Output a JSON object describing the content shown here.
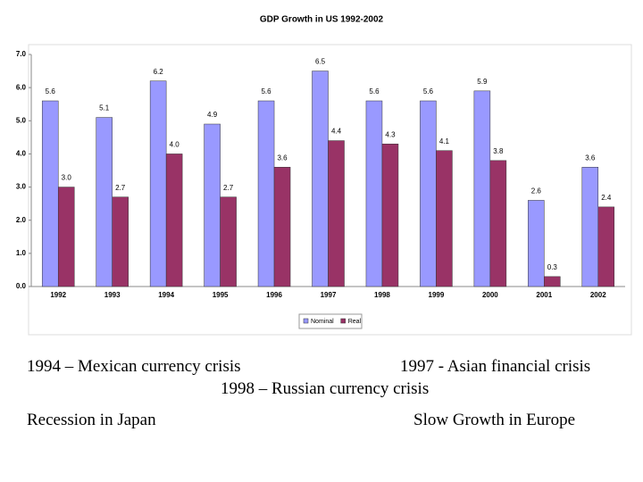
{
  "chart_data": {
    "type": "bar",
    "title": "GDP Growth in US 1992-2002",
    "categories": [
      "1992",
      "1993",
      "1994",
      "1995",
      "1996",
      "1997",
      "1998",
      "1999",
      "2000",
      "2001",
      "2002"
    ],
    "series": [
      {
        "name": "Nominal",
        "color": "#9999ff",
        "values": [
          5.6,
          5.1,
          6.2,
          4.9,
          5.6,
          6.5,
          5.6,
          5.6,
          5.9,
          2.6,
          3.6
        ],
        "value_labels": [
          "5.6",
          "5.1",
          "6.2",
          "4.9",
          "5.6",
          "6.5",
          "5.6",
          "5.6",
          "5.9",
          "2.6",
          "3.6"
        ]
      },
      {
        "name": "Real",
        "color": "#993366",
        "values": [
          3.0,
          2.7,
          4.0,
          2.7,
          3.6,
          4.4,
          4.3,
          4.1,
          3.8,
          0.3,
          2.4
        ],
        "value_labels": [
          "3.0",
          "2.7",
          "4.0",
          "2.7",
          "3.6",
          "4.4",
          "4.3",
          "4.1",
          "3.8",
          "0.3",
          "2.4"
        ]
      }
    ],
    "ylim": [
      0,
      7
    ],
    "yticks": [
      {
        "value": 0,
        "label": "0.0"
      },
      {
        "value": 1,
        "label": "1.0"
      },
      {
        "value": 2,
        "label": "2.0"
      },
      {
        "value": 3,
        "label": "3.0"
      },
      {
        "value": 4,
        "label": "4.0"
      },
      {
        "value": 5,
        "label": "5.0"
      },
      {
        "value": 6,
        "label": "6.0"
      },
      {
        "value": 7,
        "label": "7.0"
      }
    ],
    "grid": false,
    "legend": "bottom"
  },
  "notes": [
    "1994 – Mexican currency crisis",
    "1997 - Asian financial crisis",
    "1998 – Russian currency crisis",
    "Recession in Japan",
    "Slow Growth in Europe"
  ]
}
